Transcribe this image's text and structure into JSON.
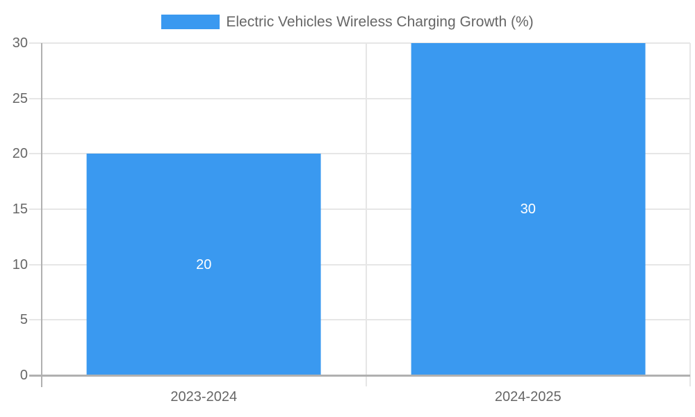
{
  "chart_data": {
    "type": "bar",
    "title": "Electric Vehicles Wireless Charging Growth (%)",
    "categories": [
      "2023-2024",
      "2024-2025"
    ],
    "values": [
      20,
      30
    ],
    "value_labels": [
      "20",
      "30"
    ],
    "ylim": [
      0,
      30
    ],
    "yticks": [
      0,
      5,
      10,
      15,
      20,
      25,
      30
    ],
    "grid": true,
    "legend_position": "top",
    "bar_width_fraction": 0.722
  },
  "colors": {
    "bar": "#3A99F0",
    "grid_line": "#E6E6E6",
    "axis_line": "#B0B0B0",
    "tick_text": "#666666",
    "legend_text": "#666666",
    "bar_label_text": "#FFFFFF",
    "background": "#FFFFFF"
  }
}
